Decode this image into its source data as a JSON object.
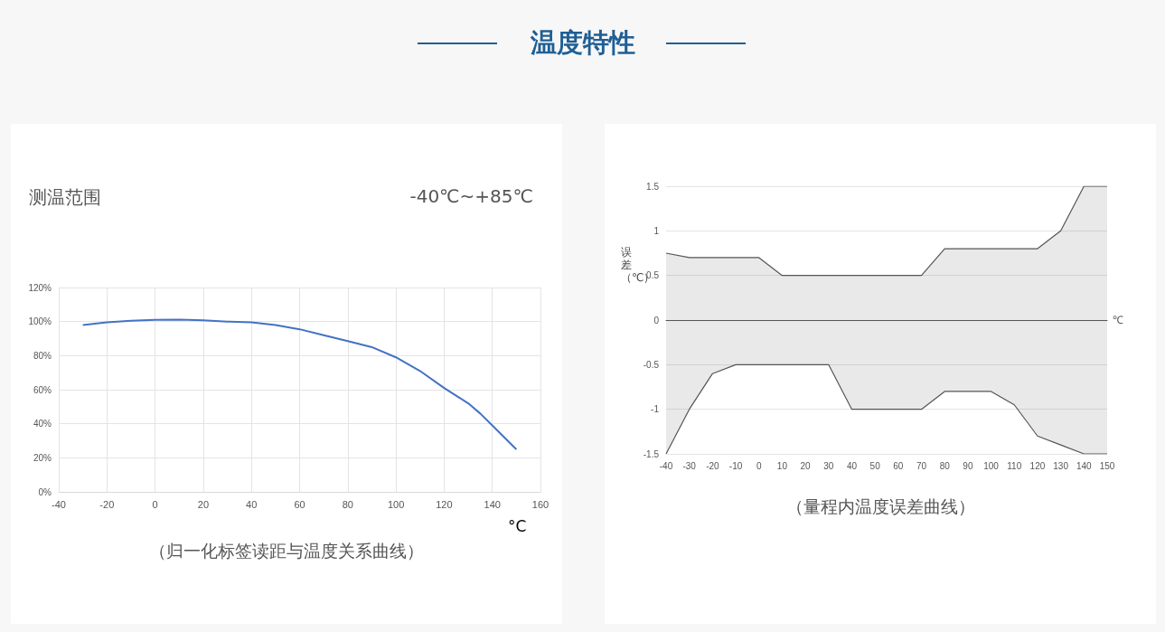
{
  "chart_data": [
    {
      "type": "line",
      "title": "温度特性",
      "annotations": [
        "测温范围",
        "-40℃~+85℃",
        "（归一化标签读距与温度关系曲线）"
      ],
      "xlabel": "°C",
      "x": [
        -30,
        -20,
        -10,
        0,
        10,
        20,
        30,
        40,
        50,
        60,
        70,
        80,
        90,
        100,
        110,
        120,
        130,
        135,
        140,
        150
      ],
      "series": [
        {
          "color": "#4472c4",
          "values": [
            98,
            99.5,
            100.5,
            101,
            101.2,
            100.8,
            100,
            99.5,
            98,
            95.5,
            92,
            88.5,
            85,
            79,
            71,
            61,
            52,
            46,
            39,
            25
          ]
        }
      ],
      "xlim": [
        -40,
        160
      ],
      "xticks": [
        -40,
        -20,
        0,
        20,
        40,
        60,
        80,
        100,
        120,
        140,
        160
      ],
      "ylim": [
        0,
        120
      ],
      "yticks": [
        {
          "value": 0,
          "label": "0%"
        },
        {
          "value": 20,
          "label": "20%"
        },
        {
          "value": 40,
          "label": "40%"
        },
        {
          "value": 60,
          "label": "60%"
        },
        {
          "value": 80,
          "label": "80%"
        },
        {
          "value": 100,
          "label": "100%"
        },
        {
          "value": 120,
          "label": "120%"
        }
      ],
      "grid": true,
      "marker": "none"
    },
    {
      "type": "area",
      "annotations": [
        "（量程内温度误差曲线）"
      ],
      "xlabel": "℃",
      "ylabel": "误差（℃）",
      "x": [
        -40,
        -30,
        -20,
        -10,
        0,
        10,
        20,
        30,
        40,
        50,
        60,
        70,
        80,
        90,
        100,
        110,
        120,
        130,
        140,
        150
      ],
      "series": [
        {
          "color": "#555555",
          "values": [
            0.75,
            0.7,
            0.7,
            0.7,
            0.7,
            0.5,
            0.5,
            0.5,
            0.5,
            0.5,
            0.5,
            0.5,
            0.8,
            0.8,
            0.8,
            0.8,
            0.8,
            1.0,
            1.5,
            1.5
          ]
        },
        {
          "color": "#555555",
          "values": [
            -1.5,
            -1.0,
            -0.6,
            -0.5,
            -0.5,
            -0.5,
            -0.5,
            -0.5,
            -1.0,
            -1.0,
            -1.0,
            -1.0,
            -0.8,
            -0.8,
            -0.8,
            -0.95,
            -1.3,
            -1.4,
            -1.5,
            -1.5
          ]
        }
      ],
      "xlim": [
        -40,
        150
      ],
      "xticks": [
        -40,
        -30,
        -20,
        -10,
        0,
        10,
        20,
        30,
        40,
        50,
        60,
        70,
        80,
        90,
        100,
        110,
        120,
        130,
        140,
        150
      ],
      "ylim": [
        -1.5,
        1.5
      ],
      "yticks": [
        -1.5,
        -1,
        -0.5,
        0,
        0.5,
        1,
        1.5
      ],
      "grid": "y",
      "marker": "none"
    }
  ]
}
